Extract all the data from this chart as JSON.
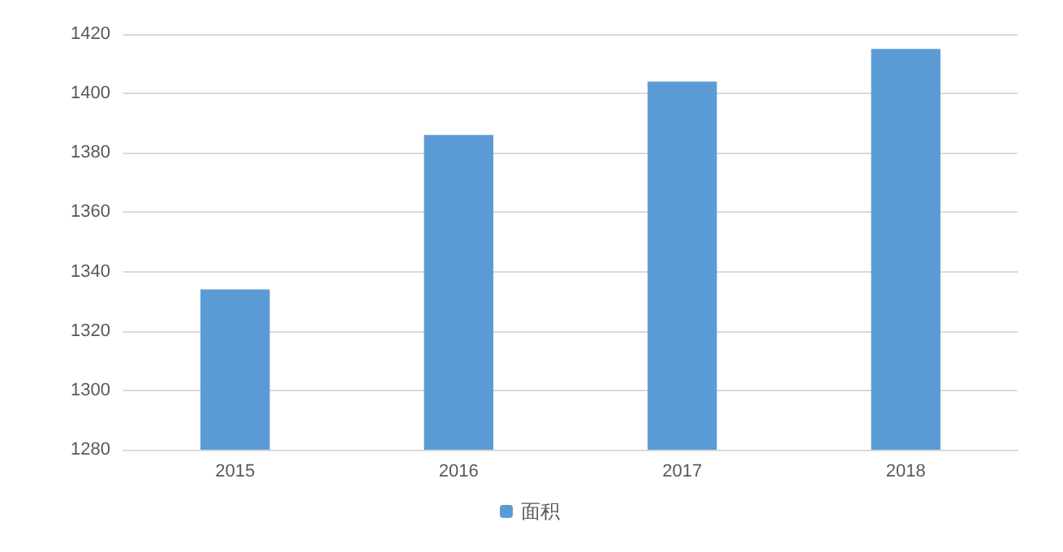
{
  "chart_data": {
    "type": "bar",
    "categories": [
      "2015",
      "2016",
      "2017",
      "2018"
    ],
    "series": [
      {
        "name": "面积",
        "color": "#5b9bd5",
        "values": [
          1334,
          1386,
          1404,
          1415
        ]
      }
    ],
    "ylim": [
      1280,
      1420
    ],
    "yticks": [
      1280,
      1300,
      1320,
      1340,
      1360,
      1380,
      1400,
      1420
    ],
    "grid": "y",
    "legend": "bottom"
  }
}
